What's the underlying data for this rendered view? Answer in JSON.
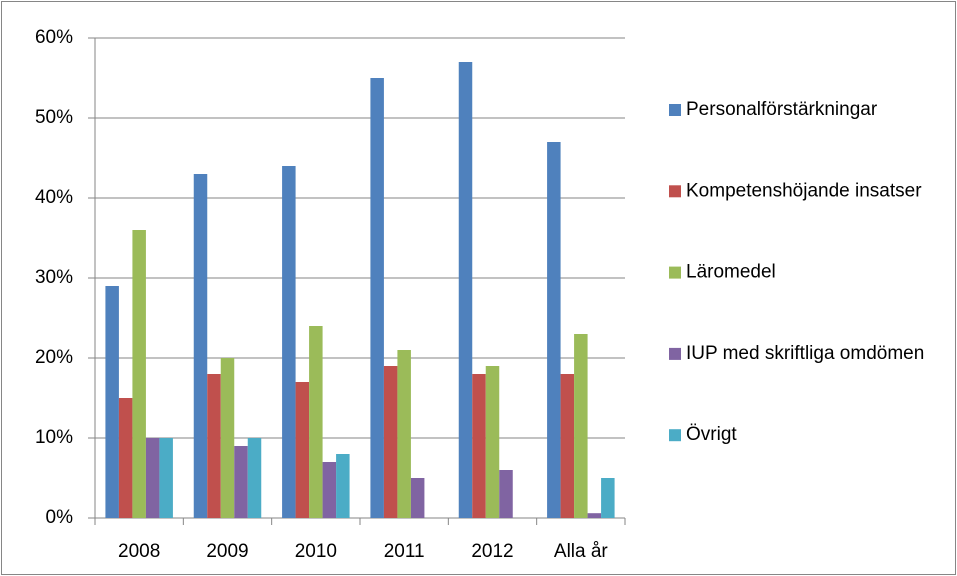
{
  "chart_data": {
    "type": "bar",
    "categories": [
      "2008",
      "2009",
      "2010",
      "2011",
      "2012",
      "Alla år"
    ],
    "series": [
      {
        "name": "Personalförstärkningar",
        "color": "#4f81bd",
        "values": [
          29,
          43,
          44,
          55,
          57,
          47
        ]
      },
      {
        "name": "Kompetenshöjande insatser",
        "color": "#c0504d",
        "values": [
          15,
          18,
          17,
          19,
          18,
          18
        ]
      },
      {
        "name": "Läromedel",
        "color": "#9bbb59",
        "values": [
          36,
          20,
          24,
          21,
          19,
          23
        ]
      },
      {
        "name": "IUP med skriftliga omdömen",
        "color": "#8064a2",
        "values": [
          10,
          9,
          7,
          5,
          6,
          0.6
        ]
      },
      {
        "name": "Övrigt",
        "color": "#4bacc6",
        "values": [
          10,
          10,
          8,
          0,
          0,
          5
        ]
      }
    ],
    "ylim": [
      0,
      60
    ],
    "yticks": [
      {
        "value": 0,
        "label": "0%"
      },
      {
        "value": 10,
        "label": "10%"
      },
      {
        "value": 20,
        "label": "20%"
      },
      {
        "value": 30,
        "label": "30%"
      },
      {
        "value": 40,
        "label": "40%"
      },
      {
        "value": 50,
        "label": "50%"
      },
      {
        "value": 60,
        "label": "60%"
      }
    ],
    "grid": true,
    "legend": "right"
  }
}
